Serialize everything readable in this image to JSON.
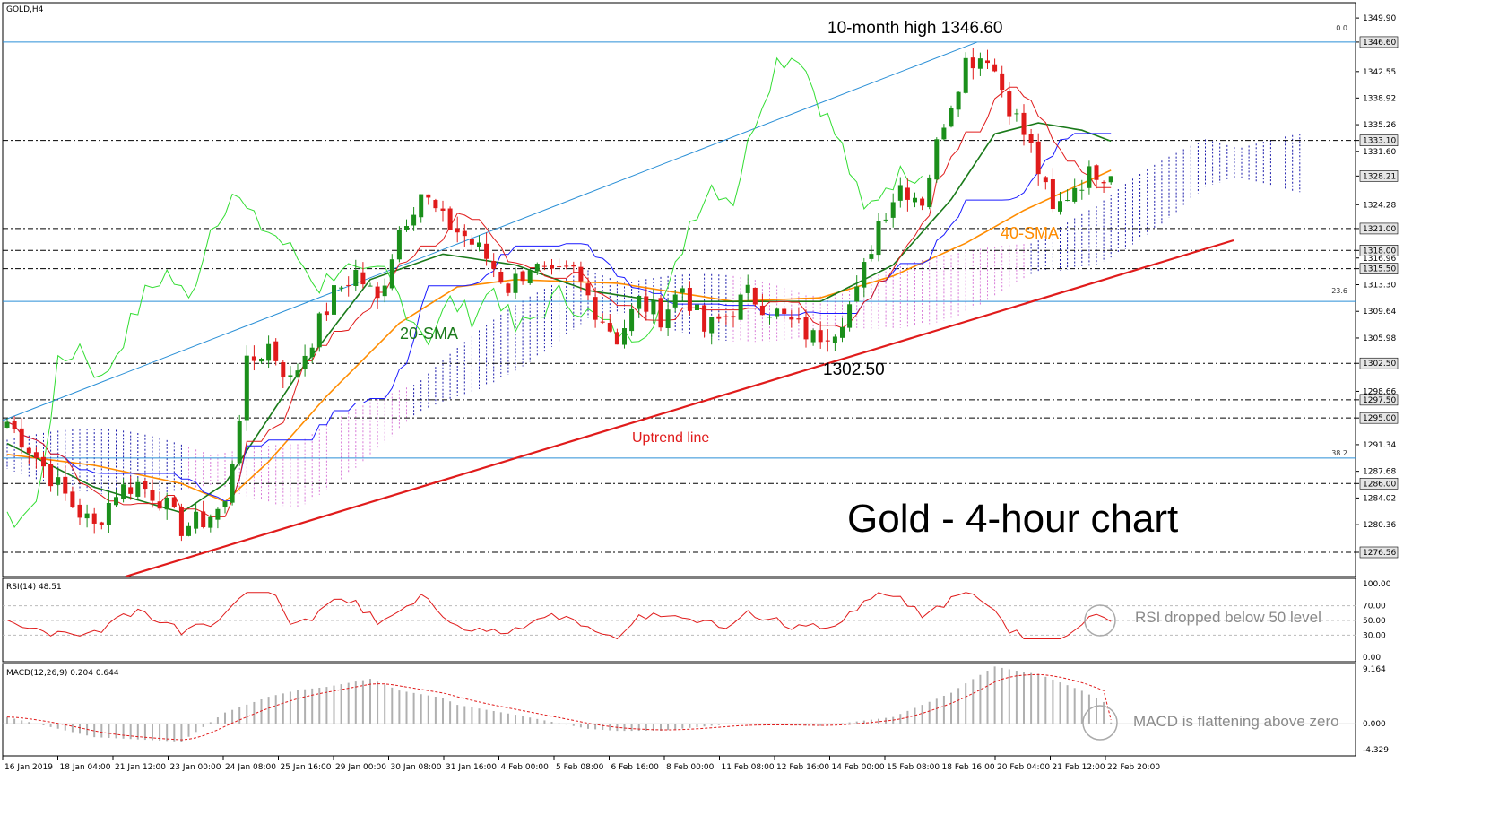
{
  "header": {
    "symbol": "GOLD,H4"
  },
  "annotations": {
    "high_label": "10-month high 1346.60",
    "low_label": "1302.50",
    "sma20_label": "20-SMA",
    "sma40_label": "40-SMA",
    "trend_label": "Uptrend line",
    "chart_title": "Gold - 4-hour chart",
    "rsi_note": "RSI dropped below 50 level",
    "macd_note": "MACD is flattening above zero"
  },
  "fib": {
    "top": "0.0",
    "mid": "23.6",
    "low": "38.2"
  },
  "rsi": {
    "label": "RSI(14) 48.51",
    "ticks": [
      "100.00",
      "70.00",
      "50.00",
      "30.00",
      "0.00"
    ]
  },
  "macd": {
    "label": "MACD(12,26,9) 0.204 0.644",
    "ticks": [
      "9.164",
      "0.000",
      "-4.329"
    ]
  },
  "colors": {
    "candle_up": "#1b8f1b",
    "candle_down": "#e01b1b",
    "sma20": "#1a7a1a",
    "sma40": "#ff8c00",
    "tenkan": "#e01b1b",
    "kijun": "#1a1aff",
    "chikou": "#33dd33",
    "fib": "#2a8fd6",
    "trendline": "#e01b1b",
    "cloud_bull": "#1a1aaa",
    "cloud_bear": "#d87ad8"
  },
  "chart_data": {
    "type": "candlestick",
    "instrument": "GOLD",
    "timeframe": "H4",
    "ylim": [
      1273,
      1350
    ],
    "y_ticks": [
      "1349.90",
      "1346.60",
      "1342.55",
      "1338.92",
      "1335.26",
      "1333.10",
      "1331.60",
      "1328.21",
      "1324.28",
      "1321.00",
      "1318.00",
      "1316.96",
      "1315.50",
      "1313.30",
      "1309.64",
      "1305.98",
      "1302.50",
      "1298.66",
      "1297.50",
      "1295.00",
      "1291.34",
      "1287.68",
      "1286.00",
      "1284.02",
      "1280.36",
      "1276.56"
    ],
    "x_ticks": [
      "16 Jan 2019",
      "18 Jan 04:00",
      "21 Jan 12:00",
      "23 Jan 00:00",
      "24 Jan 08:00",
      "25 Jan 16:00",
      "29 Jan 00:00",
      "30 Jan 08:00",
      "31 Jan 16:00",
      "4 Feb 00:00",
      "5 Feb 08:00",
      "6 Feb 16:00",
      "8 Feb 00:00",
      "11 Feb 08:00",
      "12 Feb 16:00",
      "14 Feb 00:00",
      "15 Feb 08:00",
      "18 Feb 16:00",
      "20 Feb 04:00",
      "21 Feb 12:00",
      "22 Feb 20:00"
    ],
    "horizontal_levels": [
      1346.6,
      1333.1,
      1321.0,
      1318.0,
      1315.5,
      1302.5,
      1297.5,
      1295.0,
      1286.0,
      1276.56
    ],
    "fib_levels": [
      {
        "ratio": "0.0",
        "price": 1346.6
      },
      {
        "ratio": "23.6",
        "price": 1311.0
      },
      {
        "ratio": "38.2",
        "price": 1289.5
      }
    ],
    "close_path": [
      [
        0,
        1294.5
      ],
      [
        3,
        1291.0
      ],
      [
        6,
        1287.0
      ],
      [
        9,
        1283.0
      ],
      [
        12,
        1280.0
      ],
      [
        15,
        1285.0
      ],
      [
        18,
        1286.0
      ],
      [
        21,
        1284.0
      ],
      [
        24,
        1280.0
      ],
      [
        27,
        1281.0
      ],
      [
        30,
        1283.0
      ],
      [
        33,
        1302.0
      ],
      [
        36,
        1305.0
      ],
      [
        39,
        1300.0
      ],
      [
        42,
        1306.0
      ],
      [
        45,
        1312.0
      ],
      [
        48,
        1315.0
      ],
      [
        51,
        1311.0
      ],
      [
        54,
        1321.0
      ],
      [
        57,
        1326.0
      ],
      [
        60,
        1322.0
      ],
      [
        63,
        1320.0
      ],
      [
        66,
        1317.0
      ],
      [
        69,
        1313.0
      ],
      [
        72,
        1316.0
      ],
      [
        75,
        1314.0
      ],
      [
        78,
        1315.0
      ],
      [
        81,
        1310.0
      ],
      [
        84,
        1306.0
      ],
      [
        87,
        1311.0
      ],
      [
        90,
        1309.0
      ],
      [
        93,
        1313.0
      ],
      [
        96,
        1307.0
      ],
      [
        99,
        1309.0
      ],
      [
        102,
        1312.0
      ],
      [
        105,
        1310.0
      ],
      [
        108,
        1308.0
      ],
      [
        111,
        1306.0
      ],
      [
        114,
        1307.5
      ],
      [
        117,
        1312.0
      ],
      [
        120,
        1322.0
      ],
      [
        123,
        1327.0
      ],
      [
        126,
        1325.0
      ],
      [
        129,
        1336.0
      ],
      [
        132,
        1344.0
      ],
      [
        135,
        1345.0
      ],
      [
        138,
        1338.0
      ],
      [
        141,
        1332.0
      ],
      [
        144,
        1323.0
      ],
      [
        147,
        1327.0
      ],
      [
        150,
        1329.0
      ],
      [
        152,
        1328.21
      ]
    ],
    "sma20": [
      [
        0,
        1291.5
      ],
      [
        12,
        1285.5
      ],
      [
        24,
        1282.0
      ],
      [
        30,
        1286.0
      ],
      [
        40,
        1301.0
      ],
      [
        50,
        1314.0
      ],
      [
        60,
        1317.5
      ],
      [
        70,
        1316.0
      ],
      [
        80,
        1312.5
      ],
      [
        90,
        1311.0
      ],
      [
        100,
        1311.0
      ],
      [
        112,
        1311.0
      ],
      [
        122,
        1316.0
      ],
      [
        130,
        1325.0
      ],
      [
        136,
        1334.0
      ],
      [
        142,
        1335.5
      ],
      [
        148,
        1334.5
      ],
      [
        152,
        1333.0
      ]
    ],
    "sma40": [
      [
        0,
        1290.0
      ],
      [
        12,
        1288.5
      ],
      [
        24,
        1286.0
      ],
      [
        30,
        1283.5
      ],
      [
        36,
        1289.0
      ],
      [
        44,
        1298.0
      ],
      [
        54,
        1308.0
      ],
      [
        62,
        1313.0
      ],
      [
        70,
        1314.0
      ],
      [
        84,
        1313.5
      ],
      [
        100,
        1311.0
      ],
      [
        112,
        1311.5
      ],
      [
        122,
        1314.5
      ],
      [
        132,
        1319.0
      ],
      [
        140,
        1323.5
      ],
      [
        152,
        1329.0
      ]
    ],
    "ichimoku_cloud_range_y": [
      1295.0,
      1336.0
    ],
    "key_levels": {
      "ten_month_high": 1346.6,
      "swing_low": 1302.5,
      "last_close": 1328.21
    },
    "rsi": {
      "period": 14,
      "last": 48.51,
      "ylim": [
        0,
        100
      ],
      "levels": [
        70,
        50,
        30
      ]
    },
    "macd": {
      "fast": 12,
      "slow": 26,
      "signal": 9,
      "macd_last": 0.204,
      "signal_last": 0.644,
      "ylim": [
        -4.329,
        9.164
      ]
    }
  }
}
